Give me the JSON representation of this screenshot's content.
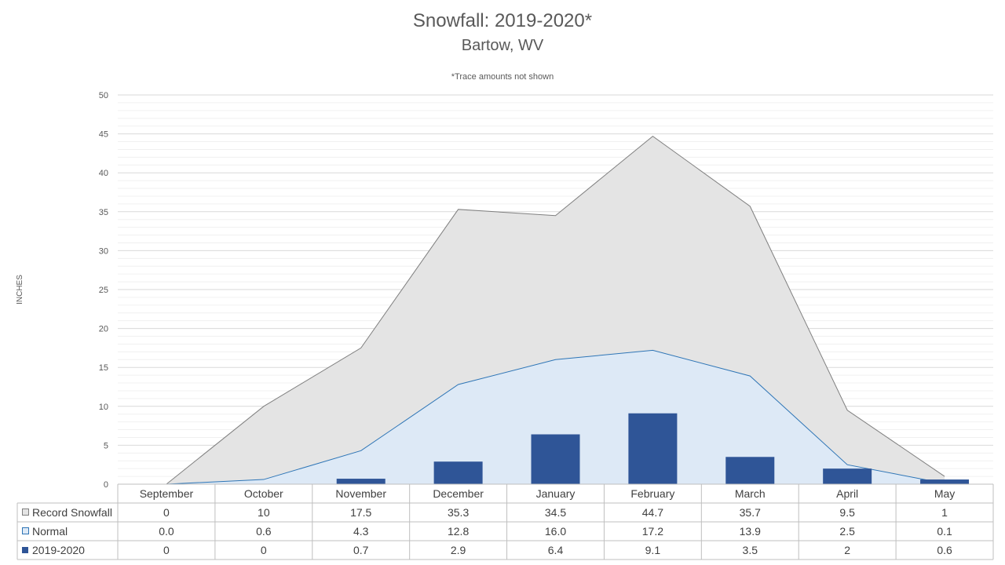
{
  "chart_data": {
    "type": "area",
    "title": "Snowfall: 2019-2020*",
    "subtitle": "Bartow, WV",
    "note": "*Trace amounts not shown",
    "ylabel": "INCHES",
    "ylim": [
      0,
      50
    ],
    "yticks": [
      0,
      5,
      10,
      15,
      20,
      25,
      30,
      35,
      40,
      45,
      50
    ],
    "grid": true,
    "legend": "data-table",
    "categories": [
      "September",
      "October",
      "November",
      "December",
      "January",
      "February",
      "March",
      "April",
      "May"
    ],
    "series": [
      {
        "name": "Record Snowfall",
        "kind": "area",
        "color": "#e4e4e4",
        "stroke": "#7f7f7f",
        "values": [
          0,
          10,
          17.5,
          35.3,
          34.5,
          44.7,
          35.7,
          9.5,
          1
        ],
        "labels": [
          "0",
          "10",
          "17.5",
          "35.3",
          "34.5",
          "44.7",
          "35.7",
          "9.5",
          "1"
        ]
      },
      {
        "name": "Normal",
        "kind": "area",
        "color": "#dde9f6",
        "stroke": "#2e75b6",
        "values": [
          0.0,
          0.6,
          4.3,
          12.8,
          16.0,
          17.2,
          13.9,
          2.5,
          0.1
        ],
        "labels": [
          "0.0",
          "0.6",
          "4.3",
          "12.8",
          "16.0",
          "17.2",
          "13.9",
          "2.5",
          "0.1"
        ]
      },
      {
        "name": "2019-2020",
        "kind": "bar",
        "color": "#2f5597",
        "values": [
          0,
          0,
          0.7,
          2.9,
          6.4,
          9.1,
          3.5,
          2,
          0.6
        ],
        "labels": [
          "0",
          "0",
          "0.7",
          "2.9",
          "6.4",
          "9.1",
          "3.5",
          "2",
          "0.6"
        ]
      }
    ]
  }
}
